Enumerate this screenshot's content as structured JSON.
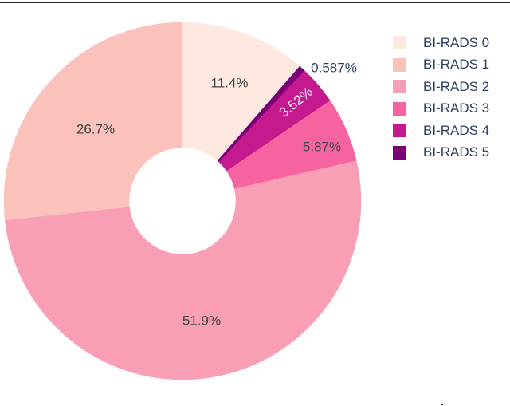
{
  "chart_data": {
    "type": "pie",
    "hole": 0.3,
    "categories": [
      "BI-RADS 0",
      "BI-RADS 1",
      "BI-RADS 2",
      "BI-RADS 3",
      "BI-RADS 4",
      "BI-RADS 5"
    ],
    "values": [
      11.4,
      26.7,
      51.9,
      5.87,
      3.52,
      0.587
    ],
    "labels": [
      "11.4%",
      "26.7%",
      "51.9%",
      "5.87%",
      "3.52%",
      "0.587%"
    ],
    "colors": [
      "#fde9e0",
      "#fbc1bb",
      "#f99fb5",
      "#f564a0",
      "#c5198e",
      "#7a0177"
    ],
    "direction": "clockwise",
    "start_angle_deg": 90,
    "legend_position": "right",
    "title": ""
  },
  "legend": {
    "items": [
      {
        "label": "BI-RADS 0",
        "color": "#fde9e0"
      },
      {
        "label": "BI-RADS 1",
        "color": "#fbc1bb"
      },
      {
        "label": "BI-RADS 2",
        "color": "#f99fb5"
      },
      {
        "label": "BI-RADS 3",
        "color": "#f564a0"
      },
      {
        "label": "BI-RADS 4",
        "color": "#c5198e"
      },
      {
        "label": "BI-RADS 5",
        "color": "#7a0177"
      }
    ]
  }
}
